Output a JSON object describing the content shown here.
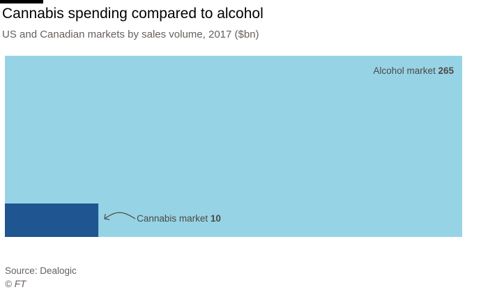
{
  "header": {
    "title": "Cannabis spending compared to alcohol",
    "subtitle": "US and Canadian markets by sales volume, 2017 ($bn)"
  },
  "chart_data": {
    "type": "area",
    "title": "Cannabis spending compared to alcohol",
    "subtitle": "US and Canadian markets by sales volume, 2017 ($bn)",
    "unit": "$bn",
    "series": [
      {
        "name": "Alcohol market",
        "value": 265,
        "color": "#96d4e5"
      },
      {
        "name": "Cannabis market",
        "value": 10,
        "color": "#1f5590"
      }
    ]
  },
  "footer": {
    "source": "Source: Dealogic",
    "credit": "© FT"
  }
}
